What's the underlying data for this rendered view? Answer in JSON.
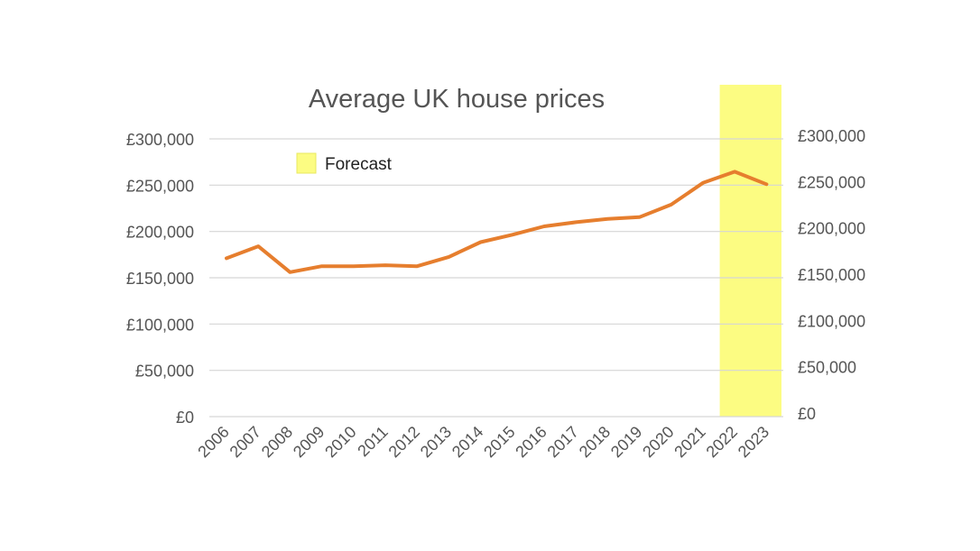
{
  "chart_data": {
    "type": "line",
    "title": "Average UK house prices",
    "xlabel": "",
    "ylabel": "",
    "x": [
      "2006",
      "2007",
      "2008",
      "2009",
      "2010",
      "2011",
      "2012",
      "2013",
      "2014",
      "2015",
      "2016",
      "2017",
      "2018",
      "2019",
      "2020",
      "2021",
      "2022",
      "2023"
    ],
    "series": [
      {
        "values": [
          171000,
          184000,
          156000,
          162500,
          162500,
          163500,
          162500,
          172500,
          188500,
          196500,
          205500,
          210000,
          213500,
          215500,
          229000,
          252500,
          264500,
          251000
        ]
      }
    ],
    "ylim": [
      0,
      300000
    ],
    "yticks": [
      0,
      50000,
      100000,
      150000,
      200000,
      250000,
      300000
    ],
    "ytick_labels": [
      "£0",
      "£50,000",
      "£100,000",
      "£150,000",
      "£200,000",
      "£250,000",
      "£300,000"
    ],
    "right_axis_mirrors_left": true,
    "grid": true,
    "legend": {
      "placement": "top-left",
      "entries": [
        {
          "label": "Forecast",
          "color": "#fcfc82"
        }
      ]
    },
    "forecast_range": [
      "2022",
      "2023"
    ],
    "colors": {
      "line": "#e67e2e",
      "forecast": "#fcfc82",
      "forecast_border": "#e8e860",
      "grid": "#d6d6d6",
      "text": "#555555"
    }
  }
}
